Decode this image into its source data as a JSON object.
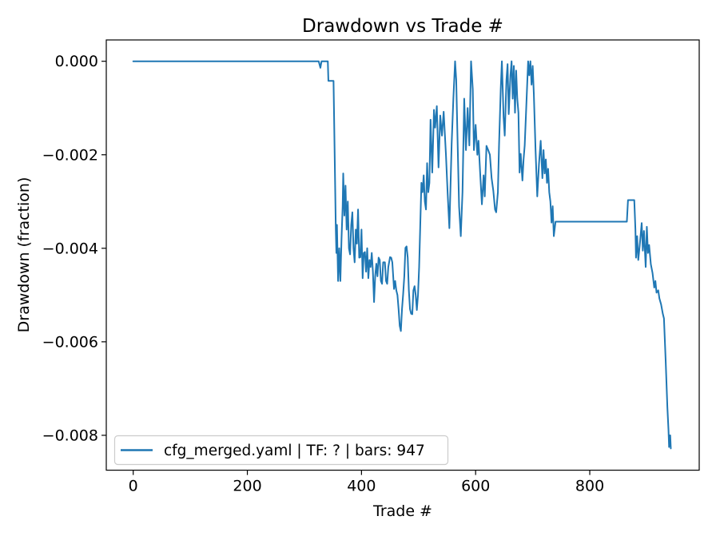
{
  "figure": {
    "title": "Drawdown vs Trade #",
    "xlabel": "Trade #",
    "ylabel": "Drawdown (fraction)"
  },
  "legend": {
    "label": "cfg_merged.yaml | TF: ? | bars: 947",
    "position": "lower left"
  },
  "chart_data": {
    "type": "line",
    "title": "Drawdown vs Trade #",
    "xlabel": "Trade #",
    "ylabel": "Drawdown (fraction)",
    "grid": false,
    "legend_position": "lower left",
    "line_color": "#1f77b4",
    "background_color": "#ffffff",
    "spine_color": "#000000",
    "legend_border_color": "#cccccc",
    "xlim": [
      -47.2,
      991.8
    ],
    "ylim": [
      -0.008746,
      0.000456
    ],
    "x_ticks": [
      0,
      200,
      400,
      600,
      800
    ],
    "x_tick_labels": [
      "0",
      "200",
      "400",
      "600",
      "800"
    ],
    "y_ticks": [
      0,
      -0.002,
      -0.004,
      -0.006,
      -0.008
    ],
    "y_tick_labels": [
      "0.000",
      "−0.002",
      "−0.004",
      "−0.006",
      "−0.008"
    ],
    "series": [
      {
        "name": "cfg_merged.yaml | TF: ? | bars: 947",
        "points": [
          [
            0,
            0
          ],
          [
            325,
            0
          ],
          [
            328,
            -0.00014
          ],
          [
            330,
            0
          ],
          [
            341,
            0
          ],
          [
            342,
            -0.00042
          ],
          [
            351,
            -0.00042
          ],
          [
            352,
            -0.0012
          ],
          [
            354,
            -0.0028
          ],
          [
            355,
            -0.0036
          ],
          [
            356,
            -0.0041
          ],
          [
            357,
            -0.0035
          ],
          [
            359,
            -0.0047
          ],
          [
            361,
            -0.004
          ],
          [
            363,
            -0.0047
          ],
          [
            365,
            -0.0038
          ],
          [
            367,
            -0.0031
          ],
          [
            368,
            -0.0024
          ],
          [
            370,
            -0.0033
          ],
          [
            372,
            -0.00266
          ],
          [
            374,
            -0.0036
          ],
          [
            376,
            -0.003
          ],
          [
            378,
            -0.004
          ],
          [
            380,
            -0.00413
          ],
          [
            382,
            -0.0035
          ],
          [
            384,
            -0.00323
          ],
          [
            386,
            -0.004
          ],
          [
            388,
            -0.0043
          ],
          [
            390,
            -0.0036
          ],
          [
            392,
            -0.0039
          ],
          [
            394,
            -0.00317
          ],
          [
            396,
            -0.0042
          ],
          [
            398,
            -0.00419
          ],
          [
            400,
            -0.0036
          ],
          [
            402,
            -0.00464
          ],
          [
            404,
            -0.0041
          ],
          [
            406,
            -0.00408
          ],
          [
            408,
            -0.0045
          ],
          [
            410,
            -0.004
          ],
          [
            412,
            -0.00464
          ],
          [
            414,
            -0.00425
          ],
          [
            416,
            -0.0044
          ],
          [
            418,
            -0.0041
          ],
          [
            420,
            -0.0045
          ],
          [
            422,
            -0.00515
          ],
          [
            424,
            -0.0046
          ],
          [
            426,
            -0.00433
          ],
          [
            428,
            -0.0046
          ],
          [
            430,
            -0.0042
          ],
          [
            432,
            -0.00425
          ],
          [
            434,
            -0.0047
          ],
          [
            436,
            -0.00476
          ],
          [
            438,
            -0.0043
          ],
          [
            441,
            -0.0043
          ],
          [
            443,
            -0.0047
          ],
          [
            445,
            -0.00476
          ],
          [
            447,
            -0.0044
          ],
          [
            450,
            -0.00419
          ],
          [
            452,
            -0.0042
          ],
          [
            454,
            -0.0043
          ],
          [
            457,
            -0.00487
          ],
          [
            459,
            -0.0047
          ],
          [
            461,
            -0.0049
          ],
          [
            463,
            -0.005
          ],
          [
            465,
            -0.0053
          ],
          [
            467,
            -0.00566
          ],
          [
            469,
            -0.00577
          ],
          [
            471,
            -0.0053
          ],
          [
            473,
            -0.00498
          ],
          [
            475,
            -0.0046
          ],
          [
            477,
            -0.00399
          ],
          [
            479,
            -0.00396
          ],
          [
            481,
            -0.0042
          ],
          [
            483,
            -0.0049
          ],
          [
            485,
            -0.0053
          ],
          [
            487,
            -0.0054
          ],
          [
            489,
            -0.00541
          ],
          [
            491,
            -0.0049
          ],
          [
            493,
            -0.00481
          ],
          [
            495,
            -0.005
          ],
          [
            497,
            -0.00532
          ],
          [
            499,
            -0.005
          ],
          [
            501,
            -0.0044
          ],
          [
            503,
            -0.0035
          ],
          [
            505,
            -0.0026
          ],
          [
            507,
            -0.0028
          ],
          [
            509,
            -0.00244
          ],
          [
            511,
            -0.003
          ],
          [
            513,
            -0.00317
          ],
          [
            515,
            -0.00218
          ],
          [
            517,
            -0.0028
          ],
          [
            519,
            -0.0026
          ],
          [
            521,
            -0.00125
          ],
          [
            524,
            -0.00238
          ],
          [
            527,
            -0.00104
          ],
          [
            529,
            -0.00142
          ],
          [
            532,
            -0.00096
          ],
          [
            535,
            -0.00227
          ],
          [
            538,
            -0.00116
          ],
          [
            541,
            -0.00159
          ],
          [
            544,
            -0.00108
          ],
          [
            548,
            -0.002
          ],
          [
            551,
            -0.00283
          ],
          [
            554,
            -0.00357
          ],
          [
            558,
            -0.00176
          ],
          [
            561,
            -0.0008
          ],
          [
            564,
            0
          ],
          [
            566,
            -0.0004
          ],
          [
            568,
            -0.0015
          ],
          [
            571,
            -0.0031
          ],
          [
            574,
            -0.00374
          ],
          [
            577,
            -0.0028
          ],
          [
            580,
            -0.0008
          ],
          [
            583,
            -0.0019
          ],
          [
            586,
            -0.001
          ],
          [
            589,
            -0.0018
          ],
          [
            592,
            0
          ],
          [
            595,
            -0.0006
          ],
          [
            597,
            -0.0019
          ],
          [
            600,
            -0.00136
          ],
          [
            603,
            -0.002
          ],
          [
            605,
            -0.0017
          ],
          [
            608,
            -0.0024
          ],
          [
            611,
            -0.00306
          ],
          [
            614,
            -0.00244
          ],
          [
            616,
            -0.00289
          ],
          [
            619,
            -0.00181
          ],
          [
            622,
            -0.0019
          ],
          [
            625,
            -0.002
          ],
          [
            628,
            -0.0025
          ],
          [
            631,
            -0.00277
          ],
          [
            634,
            -0.00317
          ],
          [
            636,
            -0.00323
          ],
          [
            639,
            -0.0028
          ],
          [
            641,
            -0.0018
          ],
          [
            644,
            -0.0006
          ],
          [
            646,
            0
          ],
          [
            649,
            -0.0012
          ],
          [
            651,
            -0.00159
          ],
          [
            654,
            -0.0004
          ],
          [
            656,
            -6e-05
          ],
          [
            658,
            -0.00113
          ],
          [
            661,
            -0.0003
          ],
          [
            663,
            0
          ],
          [
            665,
            -0.0008
          ],
          [
            667,
            -0.0001
          ],
          [
            669,
            -0.0011
          ],
          [
            671,
            -0.0002
          ],
          [
            673,
            -0.0008
          ],
          [
            675,
            -0.0011
          ],
          [
            677,
            -0.00238
          ],
          [
            679,
            -0.00198
          ],
          [
            682,
            -0.00255
          ],
          [
            684,
            -0.0021
          ],
          [
            686,
            -0.0018
          ],
          [
            688,
            -0.0012
          ],
          [
            690,
            -0.0006
          ],
          [
            692,
            0
          ],
          [
            694,
            -0.0003
          ],
          [
            696,
            0
          ],
          [
            698,
            -0.0005
          ],
          [
            700,
            -0.0001
          ],
          [
            702,
            -0.0007
          ],
          [
            705,
            -0.0019
          ],
          [
            708,
            -0.00289
          ],
          [
            711,
            -0.0022
          ],
          [
            714,
            -0.0017
          ],
          [
            717,
            -0.0025
          ],
          [
            719,
            -0.0019
          ],
          [
            721,
            -0.0024
          ],
          [
            723,
            -0.0021
          ],
          [
            725,
            -0.0026
          ],
          [
            727,
            -0.0023
          ],
          [
            729,
            -0.0028
          ],
          [
            731,
            -0.003
          ],
          [
            733,
            -0.00345
          ],
          [
            735,
            -0.0031
          ],
          [
            737,
            -0.00374
          ],
          [
            740,
            -0.00343
          ],
          [
            865,
            -0.00343
          ],
          [
            867,
            -0.00297
          ],
          [
            878,
            -0.00297
          ],
          [
            880,
            -0.0036
          ],
          [
            881,
            -0.0042
          ],
          [
            883,
            -0.00374
          ],
          [
            885,
            -0.00425
          ],
          [
            888,
            -0.00388
          ],
          [
            891,
            -0.00346
          ],
          [
            893,
            -0.00405
          ],
          [
            895,
            -0.00363
          ],
          [
            898,
            -0.0044
          ],
          [
            900,
            -0.00354
          ],
          [
            902,
            -0.0041
          ],
          [
            904,
            -0.00393
          ],
          [
            907,
            -0.00434
          ],
          [
            910,
            -0.00453
          ],
          [
            913,
            -0.00484
          ],
          [
            915,
            -0.0047
          ],
          [
            917,
            -0.00495
          ],
          [
            920,
            -0.0049
          ],
          [
            922,
            -0.00507
          ],
          [
            925,
            -0.0052
          ],
          [
            928,
            -0.0054
          ],
          [
            930,
            -0.0055
          ],
          [
            933,
            -0.0064
          ],
          [
            936,
            -0.0074
          ],
          [
            938,
            -0.0079
          ],
          [
            939,
            -0.00825
          ],
          [
            940,
            -0.008
          ],
          [
            941,
            -0.008
          ],
          [
            942,
            -0.00828
          ]
        ]
      }
    ]
  }
}
